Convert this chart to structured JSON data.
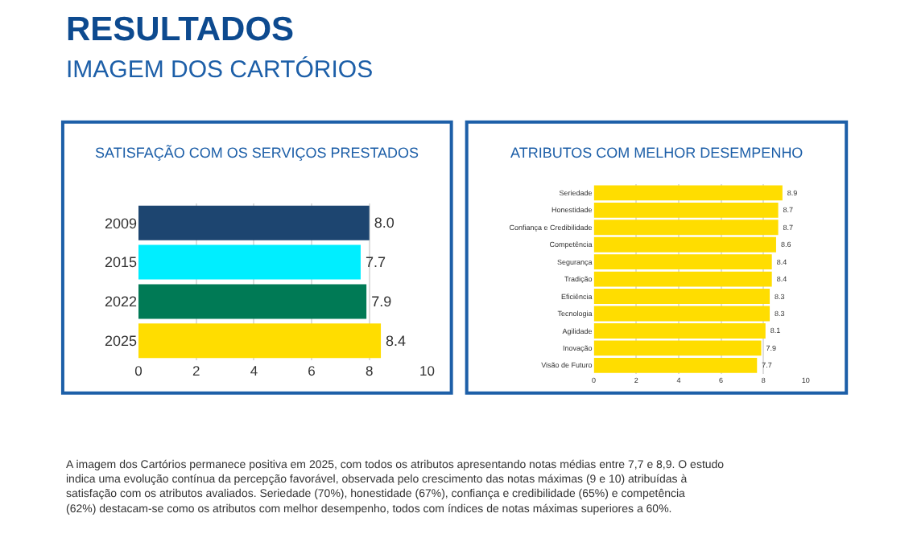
{
  "chart_data": [
    {
      "type": "bar",
      "orientation": "horizontal",
      "title": "SATISFAÇÃO COM OS SERVIÇOS PRESTADOS",
      "annotations": [
        "RESULTADOS",
        "IMAGEM DOS CARTÓRIOS"
      ],
      "categories": [
        "2009",
        "2015",
        "2022",
        "2025"
      ],
      "values": [
        8.0,
        7.7,
        7.9,
        8.4
      ],
      "colors": [
        "#1d4570",
        "#00eeff",
        "#007a55",
        "#ffdd00"
      ],
      "value_labels": [
        "8.0",
        "7.7",
        "7.9",
        "8.4"
      ],
      "xlim": [
        0,
        10
      ],
      "xticks": [
        0,
        2,
        4,
        6,
        8,
        10
      ],
      "grid": "x"
    },
    {
      "type": "bar",
      "orientation": "horizontal",
      "title": "ATRIBUTOS COM MELHOR DESEMPENHO",
      "annotations": [
        "A imagem dos Cartórios permanece positiva em 2025, com todos os atributos apresentando notas médias entre 7,7 e 8,9. O estudo indica uma evolução contínua da percepção favorável, observada pelo crescimento das notas máximas (9 e 10) atribuídas à satisfação com os atributos avaliados. Seriedade (70%), honestidade (67%), confiança e credibilidade (65%) e competência (62%) destacam-se como os atributos com melhor desempenho, todos com índices de notas máximas superiores a 60%."
      ],
      "categories": [
        "Seriedade",
        "Honestidade",
        "Confiança e Credibilidade",
        "Competência",
        "Segurança",
        "Tradição",
        "Eficiência",
        "Tecnologia",
        "Agilidade",
        "Inovação",
        "Visão de Futuro"
      ],
      "values": [
        8.9,
        8.7,
        8.7,
        8.6,
        8.4,
        8.4,
        8.3,
        8.3,
        8.1,
        7.9,
        7.7
      ],
      "color": "#ffdd00",
      "xlim": [
        0,
        10
      ],
      "xticks": [
        0,
        2,
        4,
        6,
        8,
        10
      ],
      "grid": "x",
      "data_labels": true
    }
  ]
}
